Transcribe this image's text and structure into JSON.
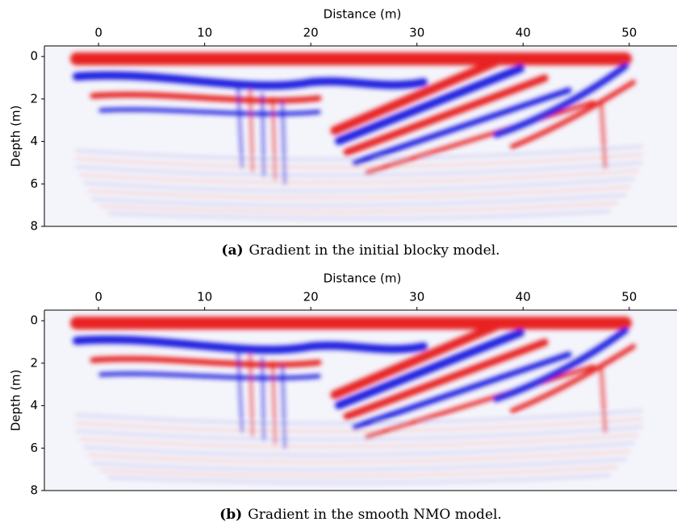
{
  "panels": [
    {
      "xlabel": "Distance (m)",
      "ylabel": "Depth (m)",
      "xlim": [
        -5.1,
        54.5
      ],
      "ylim": [
        -0.5,
        8
      ],
      "xticks": [
        0,
        10,
        20,
        30,
        40,
        50
      ],
      "yticks": [
        0,
        2,
        4,
        6,
        8
      ],
      "caption_label": "(a)",
      "caption_text": "Gradient in the initial blocky model."
    },
    {
      "xlabel": "Distance (m)",
      "ylabel": "Depth (m)",
      "xlim": [
        -5.1,
        54.5
      ],
      "ylim": [
        -0.5,
        8
      ],
      "xticks": [
        0,
        10,
        20,
        30,
        40,
        50
      ],
      "yticks": [
        0,
        2,
        4,
        6,
        8
      ],
      "caption_label": "(b)",
      "caption_text": "Gradient in the smooth NMO model."
    }
  ]
}
